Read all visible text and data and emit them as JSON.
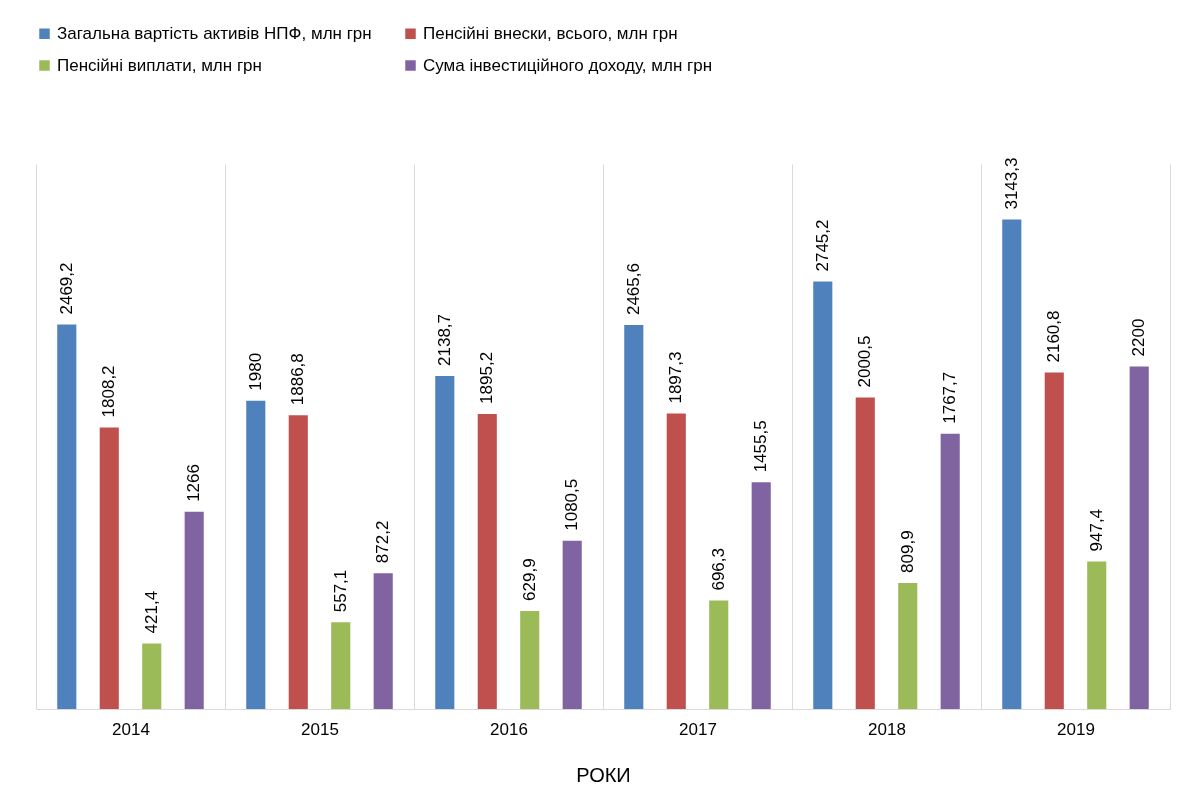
{
  "chart_data": {
    "type": "bar",
    "xlabel": "РОКИ",
    "categories": [
      "2014",
      "2015",
      "2016",
      "2017",
      "2018",
      "2019"
    ],
    "series": [
      {
        "name": "Загальна вартість активів НПФ, млн грн",
        "color": "#4f81bd",
        "values": [
          2469.2,
          1980,
          2138.7,
          2465.6,
          2745.2,
          3143.3
        ],
        "value_labels": [
          "2469,2",
          "1980",
          "2138,7",
          "2465,6",
          "2745,2",
          "3143,3"
        ]
      },
      {
        "name": "Пенсійні внески, всього, млн грн",
        "color": "#c0504d",
        "values": [
          1808.2,
          1886.8,
          1895.2,
          1897.3,
          2000.5,
          2160.8
        ],
        "value_labels": [
          "1808,2",
          "1886,8",
          "1895,2",
          "1897,3",
          "2000,5",
          "2160,8"
        ]
      },
      {
        "name": "Пенсійні виплати, млн грн",
        "color": "#9bbb59",
        "values": [
          421.4,
          557.1,
          629.9,
          696.3,
          809.9,
          947.4
        ],
        "value_labels": [
          "421,4",
          "557,1",
          "629,9",
          "696,3",
          "809,9",
          "947,4"
        ]
      },
      {
        "name": "Сума інвестиційного доходу, млн грн",
        "color": "#8064a2",
        "values": [
          1266,
          872.2,
          1080.5,
          1455.5,
          1767.7,
          2200
        ],
        "value_labels": [
          "1266",
          "872,2",
          "1080,5",
          "1455,5",
          "1767,7",
          "2200"
        ]
      }
    ],
    "legend": "top",
    "grid": "x",
    "tick_labels": "x"
  }
}
